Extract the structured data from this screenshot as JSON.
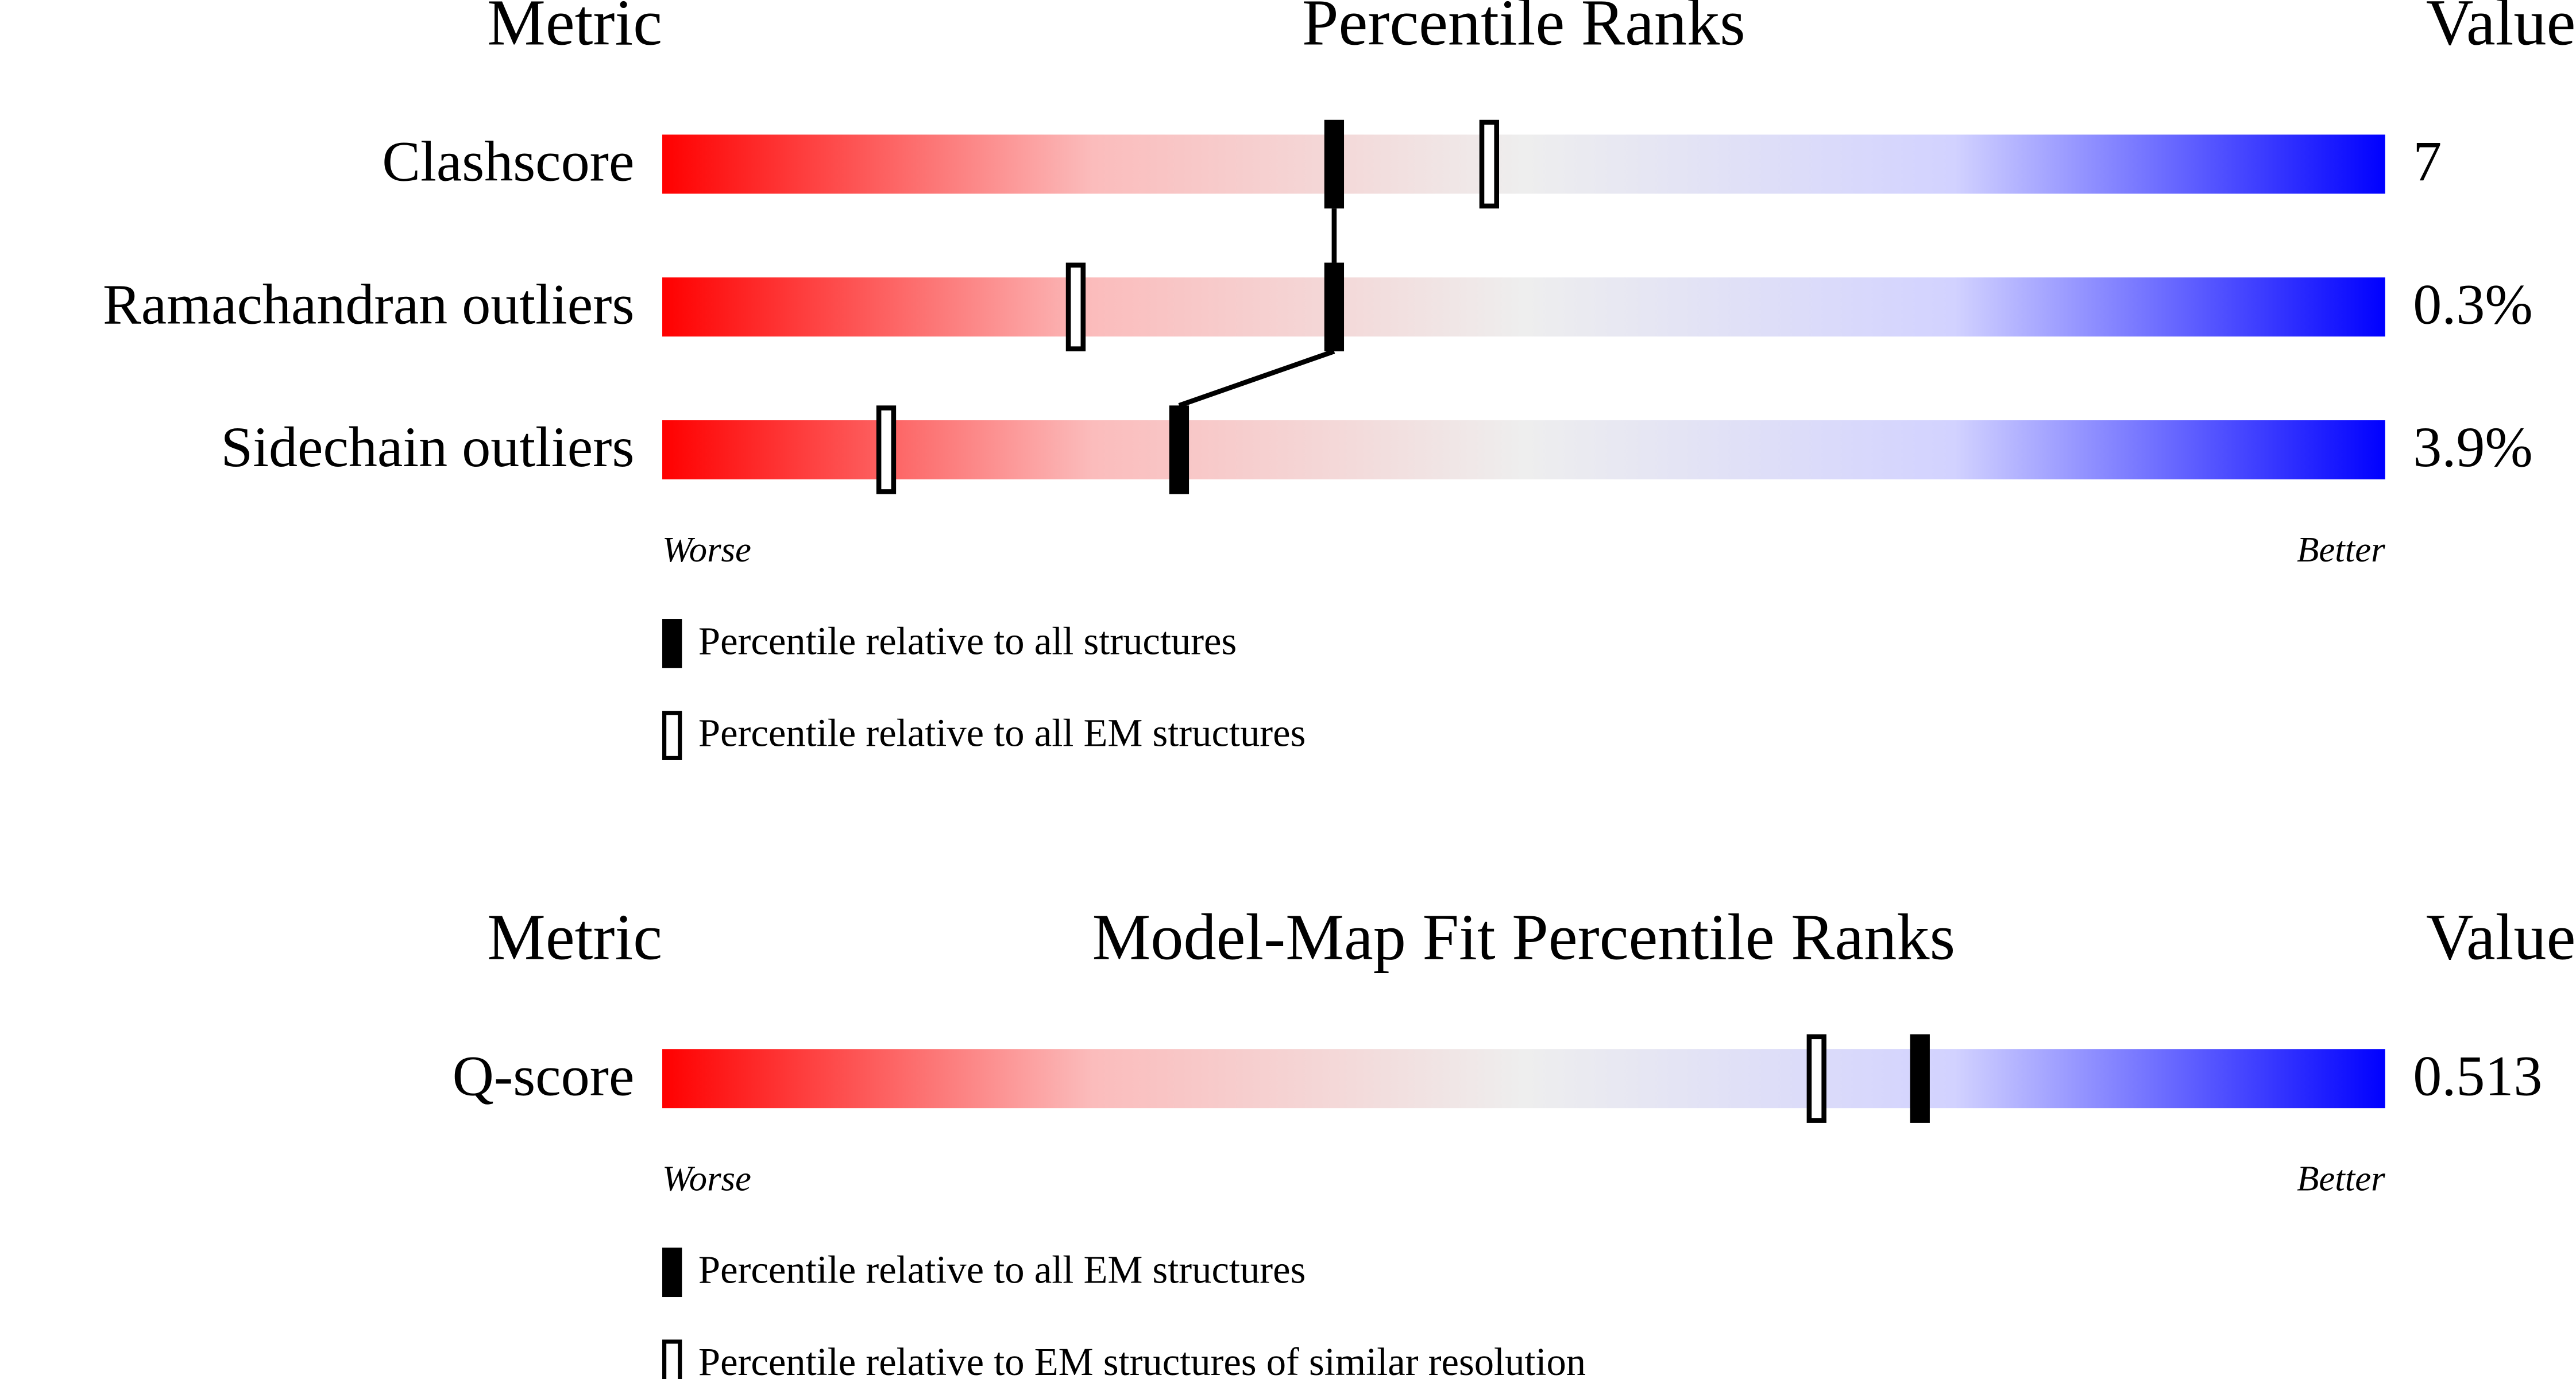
{
  "chart_data": [
    {
      "type": "percentile",
      "header": {
        "metric": "Metric",
        "title": "Percentile Ranks",
        "value": "Value"
      },
      "categories": [
        "Clashscore",
        "Ramachandran outliers",
        "Sidechain outliers"
      ],
      "metric_values": [
        "7",
        "0.3%",
        "3.9%"
      ],
      "series": [
        {
          "name": "Percentile relative to all structures",
          "style": "filled",
          "color": "#000000",
          "values": [
            39,
            39,
            30
          ]
        },
        {
          "name": "Percentile relative to all EM structures",
          "style": "open",
          "color": "#000000",
          "values": [
            48,
            24,
            13
          ]
        }
      ],
      "xlim": [
        0,
        100
      ],
      "axis_labels": {
        "low": "Worse",
        "high": "Better"
      },
      "gradient": [
        "#ff0000",
        "#fbbcbc",
        "#eeeeee",
        "#d2d2ff",
        "#0000ff"
      ]
    },
    {
      "type": "percentile",
      "header": {
        "metric": "Metric",
        "title": "Model-Map Fit Percentile Ranks",
        "value": "Value"
      },
      "categories": [
        "Q-score"
      ],
      "metric_values": [
        "0.513"
      ],
      "series": [
        {
          "name": "Percentile relative to all EM structures",
          "style": "filled",
          "color": "#000000",
          "values": [
            73
          ]
        },
        {
          "name": "Percentile relative to EM structures of similar resolution",
          "style": "open",
          "color": "#000000",
          "values": [
            67
          ]
        }
      ],
      "xlim": [
        0,
        100
      ],
      "axis_labels": {
        "low": "Worse",
        "high": "Better"
      },
      "gradient": [
        "#ff0000",
        "#fbbcbc",
        "#eeeeee",
        "#d2d2ff",
        "#0000ff"
      ]
    }
  ]
}
